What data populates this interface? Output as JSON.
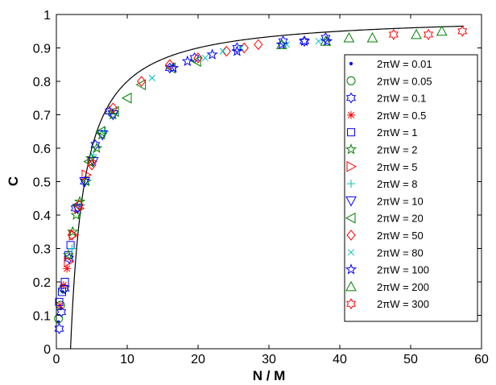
{
  "chart_data": {
    "type": "scatter",
    "title": "",
    "xlabel": "N / M",
    "ylabel": "C",
    "xlim": [
      0,
      60
    ],
    "ylim": [
      0,
      1
    ],
    "xticks": [
      "0",
      "10",
      "20",
      "30",
      "40",
      "50",
      "60"
    ],
    "yticks": [
      "0",
      "0.1",
      "0.2",
      "0.3",
      "0.4",
      "0.5",
      "0.6",
      "0.7",
      "0.8",
      "0.9",
      "1"
    ],
    "grid": false,
    "legend_position": "right",
    "curve": {
      "formula": "C = 1 - 2M/N",
      "color": "#000000",
      "x_start": 2,
      "x_end": 57.5
    },
    "series": [
      {
        "name": "2πW = 0.01",
        "marker": "dot",
        "color": "#0000ff",
        "points": [
          [
            0.3,
            0.08
          ],
          [
            0.6,
            0.12
          ],
          [
            0.9,
            0.17
          ]
        ]
      },
      {
        "name": "2πW = 0.05",
        "marker": "circle",
        "color": "#008000",
        "points": [
          [
            0.3,
            0.09
          ],
          [
            0.6,
            0.13
          ],
          [
            1.0,
            0.18
          ]
        ]
      },
      {
        "name": "2πW = 0.1",
        "marker": "hexagram",
        "color": "#0000ff",
        "points": [
          [
            0.4,
            0.06
          ],
          [
            0.7,
            0.11
          ],
          [
            1.2,
            0.18
          ],
          [
            1.8,
            0.27
          ],
          [
            2.7,
            0.42
          ],
          [
            4.0,
            0.5
          ],
          [
            5.5,
            0.61
          ],
          [
            7.5,
            0.71
          ],
          [
            16.0,
            0.84
          ],
          [
            19.5,
            0.87
          ],
          [
            25.5,
            0.9
          ],
          [
            32.0,
            0.92
          ],
          [
            35.0,
            0.92
          ],
          [
            38.0,
            0.93
          ]
        ]
      },
      {
        "name": "2πW = 0.5",
        "marker": "asterisk",
        "color": "#ff0000",
        "points": [
          [
            0.5,
            0.13
          ],
          [
            1.0,
            0.19
          ],
          [
            1.5,
            0.24
          ]
        ]
      },
      {
        "name": "2πW = 1",
        "marker": "square",
        "color": "#0000ff",
        "points": [
          [
            0.4,
            0.14
          ],
          [
            0.8,
            0.17
          ],
          [
            1.2,
            0.2
          ],
          [
            1.7,
            0.28
          ],
          [
            2.0,
            0.31
          ]
        ]
      },
      {
        "name": "2πW = 2",
        "marker": "pentagram",
        "color": "#008000",
        "points": [
          [
            1.7,
            0.28
          ],
          [
            2.3,
            0.35
          ],
          [
            2.8,
            0.4
          ],
          [
            3.3,
            0.44
          ],
          [
            4.2,
            0.5
          ],
          [
            4.9,
            0.57
          ],
          [
            5.7,
            0.6
          ],
          [
            6.4,
            0.64
          ],
          [
            8.0,
            0.7
          ]
        ]
      },
      {
        "name": "2πW = 5",
        "marker": "triangle-right",
        "color": "#ff0000",
        "points": [
          [
            1.7,
            0.26
          ],
          [
            2.4,
            0.34
          ],
          [
            3.2,
            0.42
          ],
          [
            4.2,
            0.52
          ],
          [
            5.0,
            0.56
          ]
        ]
      },
      {
        "name": "2πW = 8",
        "marker": "plus",
        "color": "#00bfbf",
        "points": [
          [
            2.2,
            0.3
          ],
          [
            3.5,
            0.43
          ],
          [
            5.2,
            0.58
          ],
          [
            6.8,
            0.65
          ]
        ]
      },
      {
        "name": "2πW = 10",
        "marker": "triangle-down",
        "color": "#0000ff",
        "points": [
          [
            3.0,
            0.42
          ],
          [
            4.0,
            0.5
          ],
          [
            5.2,
            0.56
          ],
          [
            6.5,
            0.64
          ],
          [
            8.0,
            0.7
          ]
        ]
      },
      {
        "name": "2πW = 20",
        "marker": "triangle-left",
        "color": "#008000",
        "points": [
          [
            3.0,
            0.43
          ],
          [
            4.6,
            0.56
          ],
          [
            6.3,
            0.65
          ],
          [
            8.2,
            0.71
          ],
          [
            10.0,
            0.75
          ],
          [
            12.0,
            0.79
          ],
          [
            16.2,
            0.84
          ],
          [
            19.8,
            0.86
          ]
        ]
      },
      {
        "name": "2πW = 50",
        "marker": "diamond",
        "color": "#ff0000",
        "points": [
          [
            2.2,
            0.34
          ],
          [
            3.2,
            0.43
          ],
          [
            5.0,
            0.55
          ],
          [
            8.0,
            0.72
          ],
          [
            12.0,
            0.8
          ],
          [
            16.0,
            0.85
          ],
          [
            20.0,
            0.87
          ],
          [
            24.0,
            0.89
          ],
          [
            26.5,
            0.9
          ],
          [
            28.5,
            0.91
          ]
        ]
      },
      {
        "name": "2πW = 80",
        "marker": "x",
        "color": "#00bfbf",
        "points": [
          [
            13.5,
            0.81
          ],
          [
            21.0,
            0.87
          ],
          [
            23.5,
            0.89
          ],
          [
            26.0,
            0.9
          ],
          [
            32.5,
            0.91
          ],
          [
            37.0,
            0.92
          ]
        ]
      },
      {
        "name": "2πW = 100",
        "marker": "pentagram",
        "color": "#0000ff",
        "points": [
          [
            16.5,
            0.84
          ],
          [
            18.5,
            0.86
          ],
          [
            22.0,
            0.88
          ],
          [
            25.5,
            0.89
          ],
          [
            31.8,
            0.91
          ],
          [
            35.0,
            0.92
          ],
          [
            38.2,
            0.92
          ]
        ]
      },
      {
        "name": "2πW = 200",
        "marker": "triangle-up",
        "color": "#008000",
        "points": [
          [
            31.8,
            0.91
          ],
          [
            38.0,
            0.92
          ],
          [
            41.3,
            0.93
          ],
          [
            44.6,
            0.93
          ],
          [
            50.8,
            0.94
          ],
          [
            54.4,
            0.95
          ]
        ]
      },
      {
        "name": "2πW = 300",
        "marker": "hexagram",
        "color": "#ff0000",
        "points": [
          [
            47.6,
            0.94
          ],
          [
            52.5,
            0.94
          ],
          [
            57.3,
            0.95
          ]
        ]
      }
    ]
  }
}
